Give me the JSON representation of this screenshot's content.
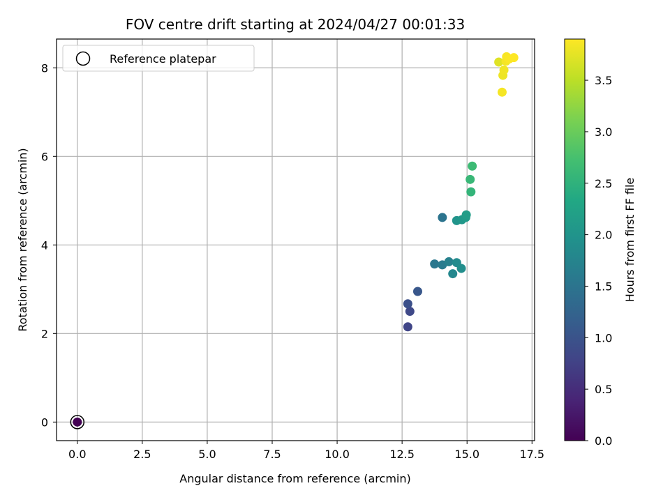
{
  "chart_data": {
    "type": "scatter",
    "title": "FOV centre drift starting at 2024/04/27 00:01:33",
    "xlabel": "Angular distance from reference (arcmin)",
    "ylabel": "Rotation from reference (arcmin)",
    "xlim": [
      -0.8,
      17.6
    ],
    "ylim": [
      -0.42,
      8.65
    ],
    "xticks": [
      0.0,
      2.5,
      5.0,
      7.5,
      10.0,
      12.5,
      15.0,
      17.5
    ],
    "xtick_labels": [
      "0.0",
      "2.5",
      "5.0",
      "7.5",
      "10.0",
      "12.5",
      "15.0",
      "17.5"
    ],
    "yticks": [
      0,
      2,
      4,
      6,
      8
    ],
    "ytick_labels": [
      "0",
      "2",
      "4",
      "6",
      "8"
    ],
    "grid": true,
    "legend": {
      "location": "upper-left",
      "entries": [
        "Reference platepar"
      ]
    },
    "colorbar": {
      "label": "Hours from first FF file",
      "colormap": "viridis",
      "range": [
        0.0,
        3.9
      ],
      "ticks": [
        0.0,
        0.5,
        1.0,
        1.5,
        2.0,
        2.5,
        3.0,
        3.5
      ],
      "tick_labels": [
        "0.0",
        "0.5",
        "1.0",
        "1.5",
        "2.0",
        "2.5",
        "3.0",
        "3.5"
      ]
    },
    "reference_point": {
      "x": 0.0,
      "y": 0.0
    },
    "points": [
      {
        "x": 0.0,
        "y": 0.0,
        "hours": 0.0
      },
      {
        "x": 12.72,
        "y": 2.15,
        "hours": 0.8
      },
      {
        "x": 12.8,
        "y": 2.5,
        "hours": 0.85
      },
      {
        "x": 12.72,
        "y": 2.67,
        "hours": 0.95
      },
      {
        "x": 13.1,
        "y": 2.95,
        "hours": 1.05
      },
      {
        "x": 13.75,
        "y": 3.57,
        "hours": 1.55
      },
      {
        "x": 14.05,
        "y": 3.55,
        "hours": 1.6
      },
      {
        "x": 14.3,
        "y": 3.62,
        "hours": 1.7
      },
      {
        "x": 14.45,
        "y": 3.35,
        "hours": 1.8
      },
      {
        "x": 14.6,
        "y": 3.6,
        "hours": 1.85
      },
      {
        "x": 14.78,
        "y": 3.47,
        "hours": 1.9
      },
      {
        "x": 14.05,
        "y": 4.62,
        "hours": 1.5
      },
      {
        "x": 14.6,
        "y": 4.55,
        "hours": 2.0
      },
      {
        "x": 14.8,
        "y": 4.57,
        "hours": 2.05
      },
      {
        "x": 14.95,
        "y": 4.62,
        "hours": 2.1
      },
      {
        "x": 14.97,
        "y": 4.68,
        "hours": 2.15
      },
      {
        "x": 15.15,
        "y": 5.2,
        "hours": 2.55
      },
      {
        "x": 15.12,
        "y": 5.48,
        "hours": 2.6
      },
      {
        "x": 15.2,
        "y": 5.78,
        "hours": 2.65
      },
      {
        "x": 16.22,
        "y": 8.13,
        "hours": 3.72
      },
      {
        "x": 16.35,
        "y": 7.45,
        "hours": 3.85
      },
      {
        "x": 16.38,
        "y": 7.83,
        "hours": 3.8
      },
      {
        "x": 16.42,
        "y": 7.95,
        "hours": 3.82
      },
      {
        "x": 16.5,
        "y": 8.15,
        "hours": 3.85
      },
      {
        "x": 16.52,
        "y": 8.25,
        "hours": 3.87
      },
      {
        "x": 16.62,
        "y": 8.2,
        "hours": 3.88
      },
      {
        "x": 16.8,
        "y": 8.23,
        "hours": 3.9
      }
    ]
  }
}
